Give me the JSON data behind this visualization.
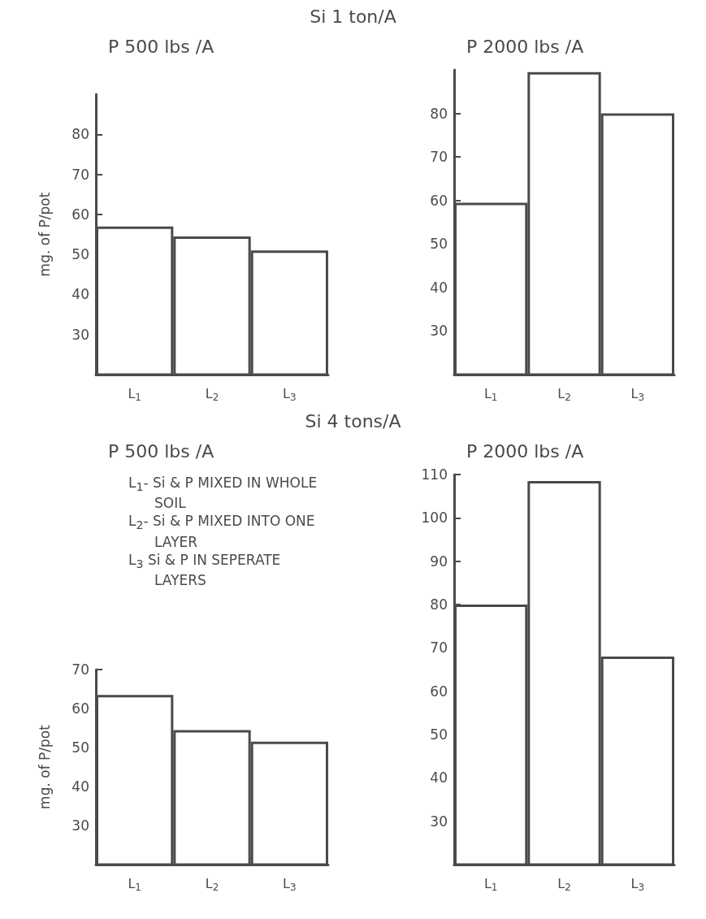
{
  "chart_data": [
    {
      "type": "bar",
      "subtitle": "Si 1 ton/A",
      "title": "P 500 lbs /A",
      "ylabel": "mg. of P/pot",
      "categories": [
        "L$_{1}$",
        "L$_{2}$",
        "L$_{3}$"
      ],
      "values": [
        57,
        54.5,
        51
      ],
      "color": "#ffffff",
      "ylim": [
        20,
        90
      ],
      "yticks": [
        30,
        40,
        50,
        60,
        70,
        80
      ]
    },
    {
      "type": "bar",
      "title": "P 2000 lbs /A",
      "categories": [
        "L$_{1}$",
        "L$_{2}$",
        "L$_{3}$"
      ],
      "values": [
        59.5,
        89.5,
        80
      ],
      "color": "#ffffff",
      "ylim": [
        20,
        90
      ],
      "yticks": [
        30,
        40,
        50,
        60,
        70,
        80
      ]
    },
    {
      "type": "bar",
      "subtitle": "Si 4 tons/A",
      "title": "P 500 lbs /A",
      "ylabel": "mg. of P/pot",
      "categories": [
        "L$_{1}$",
        "L$_{2}$",
        "L$_{3}$"
      ],
      "values": [
        63.5,
        54.5,
        51.5
      ],
      "color": "#ffffff",
      "ylim": [
        20,
        70
      ],
      "yticks": [
        30,
        40,
        50,
        60,
        70
      ],
      "annotations": [
        "L$_{1}$- Si & P MIXED IN WHOLE SOIL",
        "L$_{2}$- Si & P MIXED INTO ONE LAYER",
        "L$_{3}$ Si & P IN SEPERATE LAYERS"
      ]
    },
    {
      "type": "bar",
      "title": "P 2000 lbs /A",
      "categories": [
        "L$_{1}$",
        "L$_{2}$",
        "L$_{3}$"
      ],
      "values": [
        80,
        108.5,
        68
      ],
      "color": "#ffffff",
      "ylim": [
        20,
        110
      ],
      "yticks": [
        30,
        40,
        50,
        60,
        70,
        80,
        90,
        100,
        110
      ]
    }
  ]
}
